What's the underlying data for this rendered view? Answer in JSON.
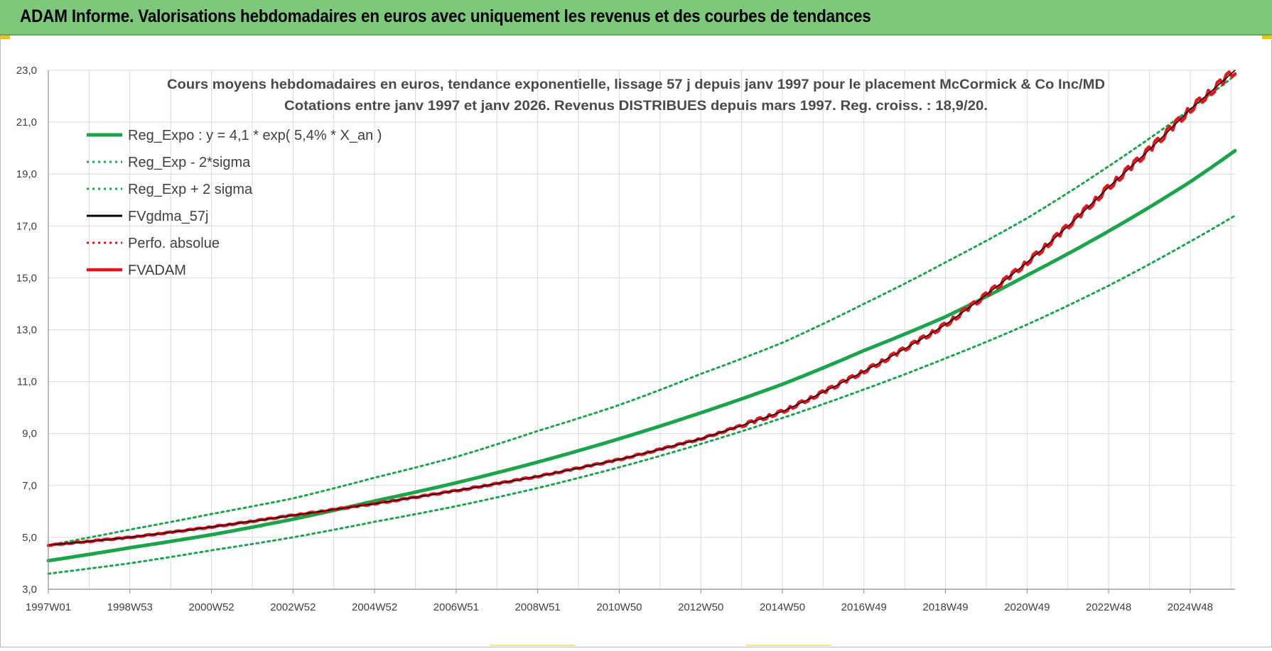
{
  "banner": {
    "title": "ADAM Informe. Valorisations hebdomadaires en euros avec uniquement les revenus et des courbes de tendances"
  },
  "colors": {
    "banner_bg": "#7dc87a",
    "reg_expo": "#1aa54a",
    "fvadam": "#e8141b",
    "fvgdma": "#000000",
    "perfo": "#e8141b"
  },
  "chart_data": {
    "type": "line",
    "title_lines": [
      "Cours moyens hebdomadaires en euros, tendance exponentielle, lissage 57 j depuis janv 1997  pour le placement McCormick & Co Inc/MD",
      "Cotations entre janv 1997 et janv 2026. Revenus DISTRIBUES depuis mars 1997. Reg. croiss. : 18,9/20."
    ],
    "xlabel": "",
    "ylabel": "",
    "ylim": [
      3.0,
      23.0
    ],
    "xlim": [
      1997.0,
      2026.1
    ],
    "y_ticks": [
      "3,0",
      "5,0",
      "7,0",
      "9,0",
      "11,0",
      "13,0",
      "15,0",
      "17,0",
      "19,0",
      "21,0",
      "23,0"
    ],
    "x_ticks": [
      {
        "label": "1997W01",
        "x": 1997.0
      },
      {
        "label": "1998W53",
        "x": 1999.0
      },
      {
        "label": "2000W52",
        "x": 2001.0
      },
      {
        "label": "2002W52",
        "x": 2003.0
      },
      {
        "label": "2004W52",
        "x": 2005.0
      },
      {
        "label": "2006W51",
        "x": 2007.0
      },
      {
        "label": "2008W51",
        "x": 2009.0
      },
      {
        "label": "2010W50",
        "x": 2011.0
      },
      {
        "label": "2012W50",
        "x": 2013.0
      },
      {
        "label": "2014W50",
        "x": 2015.0
      },
      {
        "label": "2016W49",
        "x": 2017.0
      },
      {
        "label": "2018W49",
        "x": 2019.0
      },
      {
        "label": "2020W49",
        "x": 2021.0
      },
      {
        "label": "2022W48",
        "x": 2023.0
      },
      {
        "label": "2024W48",
        "x": 2025.0
      }
    ],
    "grid": true,
    "legend_position": "top-left",
    "series": [
      {
        "name": "Reg_Expo : y = 4,1 * exp( 5,4% *  X_an )",
        "style": "thick-solid",
        "color": "#1aa54a",
        "x": [
          1997.0,
          1999.0,
          2001.0,
          2003.0,
          2005.0,
          2007.0,
          2009.0,
          2011.0,
          2013.0,
          2015.0,
          2017.0,
          2019.0,
          2021.0,
          2023.0,
          2025.0,
          2026.1
        ],
        "y": [
          4.1,
          4.6,
          5.1,
          5.7,
          6.4,
          7.1,
          7.9,
          8.8,
          9.8,
          10.9,
          12.2,
          13.5,
          15.1,
          16.8,
          18.7,
          19.9
        ]
      },
      {
        "name": "Reg_Exp - 2*sigma",
        "style": "dotted",
        "color": "#1aa54a",
        "x": [
          1997.0,
          1999.0,
          2001.0,
          2003.0,
          2005.0,
          2007.0,
          2009.0,
          2011.0,
          2013.0,
          2015.0,
          2017.0,
          2019.0,
          2021.0,
          2023.0,
          2025.0,
          2026.1
        ],
        "y": [
          3.6,
          4.0,
          4.5,
          5.0,
          5.6,
          6.2,
          6.9,
          7.7,
          8.6,
          9.6,
          10.7,
          11.9,
          13.2,
          14.7,
          16.4,
          17.4
        ]
      },
      {
        "name": "Reg_Exp + 2 sigma",
        "style": "dotted",
        "color": "#1aa54a",
        "x": [
          1997.0,
          1999.0,
          2001.0,
          2003.0,
          2005.0,
          2007.0,
          2009.0,
          2011.0,
          2013.0,
          2015.0,
          2017.0,
          2019.0,
          2021.0,
          2023.0,
          2025.0,
          2026.1
        ],
        "y": [
          4.7,
          5.3,
          5.9,
          6.5,
          7.3,
          8.1,
          9.1,
          10.1,
          11.3,
          12.5,
          14.0,
          15.6,
          17.3,
          19.3,
          21.5,
          22.8
        ]
      },
      {
        "name": "FVgdma_57j",
        "style": "thin-solid",
        "color": "#000000",
        "x": [
          1997.0,
          1999.0,
          2001.0,
          2003.0,
          2005.0,
          2007.0,
          2009.0,
          2011.0,
          2013.0,
          2015.0,
          2017.0,
          2019.0,
          2021.0,
          2023.0,
          2025.0,
          2026.1
        ],
        "y": [
          4.7,
          5.0,
          5.4,
          5.85,
          6.3,
          6.8,
          7.35,
          8.0,
          8.8,
          9.85,
          11.4,
          13.2,
          15.6,
          18.5,
          21.5,
          23.0
        ]
      },
      {
        "name": "Perfo. absolue",
        "style": "dotted",
        "color": "#e8141b",
        "x": [],
        "y": []
      },
      {
        "name": "FVADAM",
        "style": "thick-solid-stepped",
        "color": "#e8141b",
        "x": [
          1997.0,
          1999.0,
          2001.0,
          2003.0,
          2005.0,
          2007.0,
          2009.0,
          2011.0,
          2013.0,
          2015.0,
          2017.0,
          2019.0,
          2021.0,
          2023.0,
          2025.0,
          2026.1
        ],
        "y": [
          4.7,
          5.0,
          5.4,
          5.85,
          6.3,
          6.8,
          7.35,
          8.0,
          8.8,
          9.85,
          11.4,
          13.2,
          15.6,
          18.5,
          21.5,
          23.0
        ]
      }
    ]
  }
}
